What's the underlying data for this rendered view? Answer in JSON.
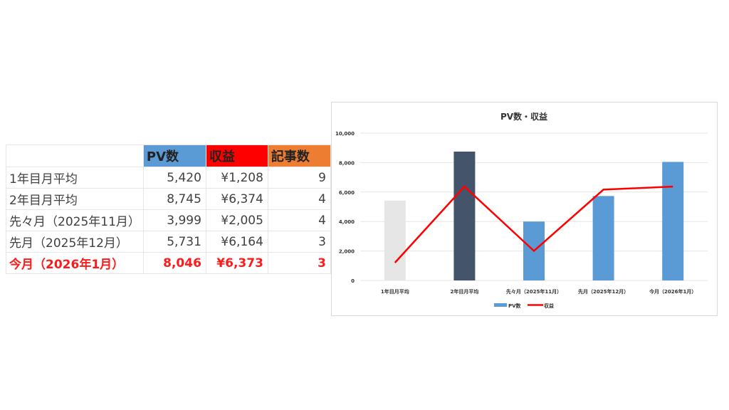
{
  "table": {
    "headers": [
      "",
      "PV数",
      "収益",
      "記事数"
    ],
    "header_colors": [
      "#ffffff",
      "#5b9bd5",
      "#ff0000",
      "#ed7d31"
    ],
    "rows": [
      {
        "label": "1年目月平均",
        "pv": "5,420",
        "revenue": "¥1,208",
        "articles": "9"
      },
      {
        "label": "2年目月平均",
        "pv": "8,745",
        "revenue": "¥6,374",
        "articles": "4"
      },
      {
        "label": "先々月（2025年11月）",
        "pv": "3,999",
        "revenue": "¥2,005",
        "articles": "4"
      },
      {
        "label": "先月（2025年12月）",
        "pv": "5,731",
        "revenue": "¥6,164",
        "articles": "3"
      },
      {
        "label": "今月（2026年1月）",
        "pv": "8,046",
        "revenue": "¥6,373",
        "articles": "3"
      }
    ]
  },
  "chart_data": {
    "type": "bar+line",
    "title": "PV数・収益",
    "categories": [
      "1年目月平均",
      "2年目月平均",
      "先々月（2025年11月）",
      "先月（2025年12月）",
      "今月（2026年1月）"
    ],
    "series": [
      {
        "name": "PV数",
        "type": "bar",
        "values": [
          5420,
          8745,
          3999,
          5731,
          8046
        ],
        "color": "#5b9bd5",
        "point_colors": [
          "#e6e6e6",
          "#44546a",
          "#5b9bd5",
          "#5b9bd5",
          "#5b9bd5"
        ]
      },
      {
        "name": "収益",
        "type": "line",
        "values": [
          1208,
          6374,
          2005,
          6164,
          6373
        ],
        "color": "#ff0000"
      }
    ],
    "ylim": [
      0,
      10000
    ],
    "yticks": [
      "0",
      "2,000",
      "4,000",
      "6,000",
      "8,000",
      "10,000"
    ],
    "grid": true,
    "legend": "bottom"
  }
}
